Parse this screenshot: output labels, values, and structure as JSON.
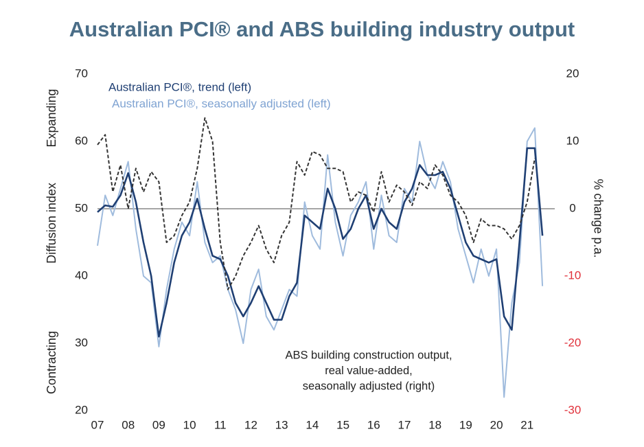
{
  "chart_data": {
    "type": "line",
    "title": "Australian PCI® and ABS building industry output",
    "y_label": "Diffusion index",
    "y2_label": "% change p.a.",
    "y_top_label": "Expanding",
    "y_bottom_label": "Contracting",
    "annotation": [
      "ABS building construction output,",
      "real value-added,",
      "seasonally adjusted (right)"
    ],
    "x": [
      2007,
      2007.25,
      2007.5,
      2007.75,
      2008,
      2008.25,
      2008.5,
      2008.75,
      2009,
      2009.25,
      2009.5,
      2009.75,
      2010,
      2010.25,
      2010.5,
      2010.75,
      2011,
      2011.25,
      2011.5,
      2011.75,
      2012,
      2012.25,
      2012.5,
      2012.75,
      2013,
      2013.25,
      2013.5,
      2013.75,
      2014,
      2014.25,
      2014.5,
      2014.75,
      2015,
      2015.25,
      2015.5,
      2015.75,
      2016,
      2016.25,
      2016.5,
      2016.75,
      2017,
      2017.25,
      2017.5,
      2017.75,
      2018,
      2018.25,
      2018.5,
      2018.75,
      2019,
      2019.25,
      2019.5,
      2019.75,
      2020,
      2020.25,
      2020.5,
      2020.75,
      2021,
      2021.25,
      2021.5
    ],
    "xlim": [
      2007,
      2021.9
    ],
    "xticks": [
      {
        "value": 2007,
        "label": "07"
      },
      {
        "value": 2008,
        "label": "08"
      },
      {
        "value": 2009,
        "label": "09"
      },
      {
        "value": 2010,
        "label": "10"
      },
      {
        "value": 2011,
        "label": "11"
      },
      {
        "value": 2012,
        "label": "12"
      },
      {
        "value": 2013,
        "label": "13"
      },
      {
        "value": 2014,
        "label": "14"
      },
      {
        "value": 2015,
        "label": "15"
      },
      {
        "value": 2016,
        "label": "16"
      },
      {
        "value": 2017,
        "label": "17"
      },
      {
        "value": 2018,
        "label": "18"
      },
      {
        "value": 2019,
        "label": "19"
      },
      {
        "value": 2020,
        "label": "20"
      },
      {
        "value": 2021,
        "label": "21"
      }
    ],
    "ylim": [
      20,
      70
    ],
    "yticks": [
      20,
      30,
      40,
      50,
      60,
      70
    ],
    "y2lim": [
      -30,
      20
    ],
    "y2ticks": [
      -30,
      -20,
      -10,
      0,
      10,
      20
    ],
    "y2tick_negative_color": "#e0303a",
    "reference_line": {
      "axis": "y2",
      "value": 0
    },
    "series": [
      {
        "name": "Australian PCI®, seasonally adjusted (left)",
        "color": "#9fbbdd",
        "width": 2,
        "values": [
          44.5,
          52,
          49,
          53,
          57,
          47,
          40,
          39,
          29.5,
          38,
          44,
          48,
          46,
          54,
          45,
          42,
          43,
          38,
          35,
          30,
          38,
          41,
          34,
          32,
          35,
          38,
          37,
          51,
          46,
          44,
          58,
          48,
          43,
          49,
          51,
          54,
          44,
          52,
          46,
          45,
          53,
          51,
          60,
          55,
          53,
          57,
          54,
          47,
          43,
          39,
          44,
          40,
          44,
          22,
          36,
          42,
          60,
          62,
          38.5
        ]
      },
      {
        "name": "Australian PCI®, trend (left)",
        "color": "#1f3f73",
        "width": 2.6,
        "values": [
          49.5,
          50.5,
          50.3,
          52,
          55.3,
          51,
          45,
          40,
          31,
          36,
          42,
          46,
          48,
          51.5,
          47,
          43,
          42.5,
          40,
          36,
          34,
          36,
          38.5,
          36,
          33.5,
          33.5,
          37,
          39,
          49,
          48,
          47,
          53,
          50,
          45.5,
          47,
          50,
          52,
          47,
          50,
          48,
          47,
          51,
          53,
          56.5,
          55,
          55,
          55.5,
          53,
          49,
          45,
          43,
          42.5,
          42,
          42.5,
          34,
          32,
          45,
          59,
          59,
          46
        ]
      },
      {
        "color": "#333333",
        "width": 2,
        "dash": true,
        "axis": "y2",
        "values": [
          9.5,
          11,
          2.5,
          6.5,
          0,
          6,
          2.5,
          5.5,
          4,
          -5,
          -4,
          -1,
          1,
          6,
          13.5,
          10,
          -5,
          -12,
          -10,
          -7,
          -5,
          -2.5,
          -6,
          -8,
          -4,
          -2,
          7,
          5,
          8.5,
          8,
          6,
          6,
          5.5,
          1,
          2.5,
          2,
          -0.5,
          5.5,
          1,
          3.5,
          2.5,
          0.5,
          4,
          3,
          6.5,
          5,
          2,
          1,
          -1,
          -5,
          -1.5,
          -2.5,
          -2.5,
          -3,
          -4.5,
          -2.5,
          1,
          7.5,
          null
        ]
      }
    ]
  }
}
